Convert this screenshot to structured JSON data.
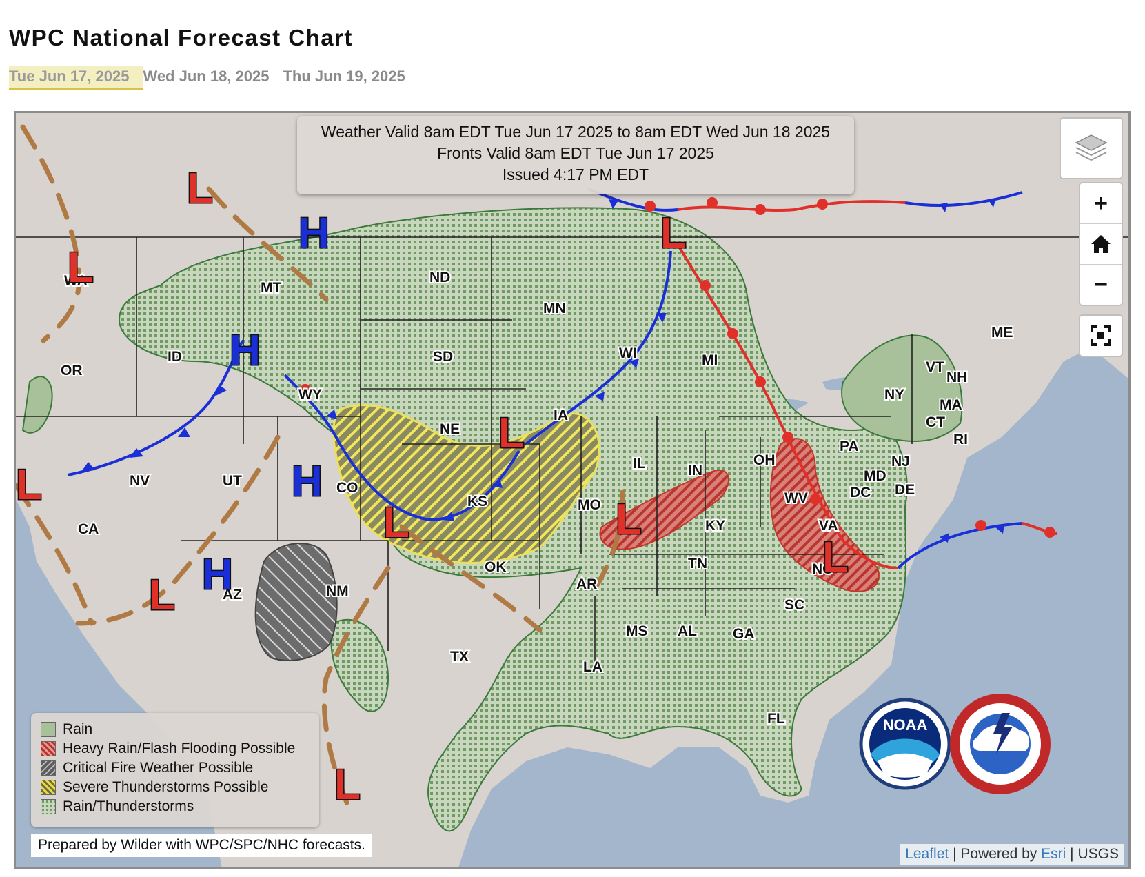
{
  "page": {
    "title": "WPC National Forecast Chart",
    "tabs": [
      {
        "label": "Tue Jun 17, 2025",
        "active": true
      },
      {
        "label": "Wed Jun 18, 2025",
        "active": false
      },
      {
        "label": "Thu Jun 19, 2025",
        "active": false
      }
    ]
  },
  "valid_box": {
    "line1": "Weather Valid 8am EDT Tue Jun 17 2025 to 8am EDT Wed Jun 18 2025",
    "line2": "Fronts Valid 8am EDT Tue Jun 17 2025",
    "line3": "Issued 4:17 PM EDT"
  },
  "controls": {
    "zoom_in": "+",
    "zoom_out": "−",
    "icons": {
      "layers": "layers-icon",
      "home": "home-icon",
      "fullscreen": "fullscreen-icon"
    }
  },
  "states": [
    "WA",
    "OR",
    "CA",
    "NV",
    "ID",
    "MT",
    "WY",
    "UT",
    "CO",
    "AZ",
    "NM",
    "ND",
    "SD",
    "NE",
    "KS",
    "OK",
    "TX",
    "MN",
    "IA",
    "MO",
    "AR",
    "LA",
    "WI",
    "IL",
    "MI",
    "IN",
    "OH",
    "KY",
    "TN",
    "MS",
    "AL",
    "GA",
    "FL",
    "SC",
    "NC",
    "VA",
    "WV",
    "PA",
    "NY",
    "VT",
    "NH",
    "ME",
    "MA",
    "CT",
    "RI",
    "NJ",
    "DE",
    "MD",
    "DC"
  ],
  "pressure_centers": {
    "high": "H",
    "low": "L"
  },
  "legend": {
    "items": [
      {
        "label": "Rain",
        "color": "#9fbb8f"
      },
      {
        "label": "Heavy Rain/Flash Flooding Possible",
        "color": "#c0504d"
      },
      {
        "label": "Critical Fire Weather Possible",
        "color": "#6e6e6e"
      },
      {
        "label": "Severe Thunderstorms Possible",
        "color": "#e3d84a"
      },
      {
        "label": "Rain/Thunderstorms",
        "color": "#8fae80"
      }
    ]
  },
  "prepared_by": "Prepared by Wilder with WPC/SPC/NHC forecasts.",
  "attribution": {
    "leaflet": "Leaflet",
    "separator": "|",
    "powered": "Powered by",
    "esri": "Esri",
    "usgs": "USGS"
  },
  "logos": {
    "noaa": "NOAA",
    "nws": "NATIONAL WEATHER SERVICE"
  },
  "colors": {
    "rain": "#9fbb8f",
    "heavy_rain": "#c0504d",
    "fire": "#6e6e6e",
    "severe": "#e3d84a",
    "cold_front": "#1a2fd6",
    "warm_front": "#e0302a",
    "trough": "#b07a45",
    "ocean": "#a4b6cb",
    "land": "#d9d3cf"
  }
}
